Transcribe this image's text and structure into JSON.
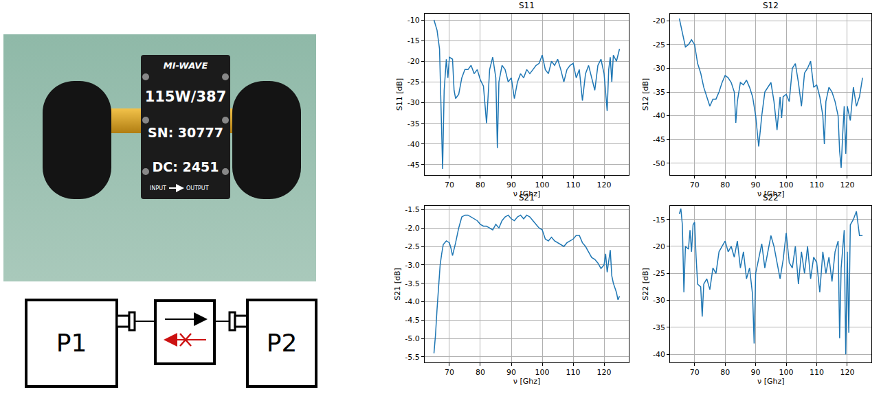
{
  "chart_data": [
    {
      "type": "line",
      "title": "S11",
      "x_label": "ν [Ghz]",
      "y_label": "S11 [dB]",
      "color": "#1f77b4",
      "grid": true,
      "xlim": [
        62,
        128
      ],
      "xticks": [
        70,
        80,
        90,
        100,
        110,
        120
      ],
      "ylim": [
        -47.5,
        -8.5
      ],
      "yticks": [
        -45,
        -40,
        -35,
        -30,
        -25,
        -20,
        -15,
        -10
      ],
      "x": [
        65,
        66,
        66.8,
        67.3,
        67.8,
        68.3,
        69,
        69.5,
        70,
        71,
        71.5,
        72,
        73,
        74,
        75,
        76,
        77,
        78,
        79,
        80,
        81,
        82,
        83,
        84,
        85,
        85.5,
        86,
        87,
        88,
        89,
        90,
        91,
        92,
        93,
        94,
        95,
        96,
        97,
        98,
        99,
        100,
        101,
        102,
        103,
        104,
        105,
        106,
        107,
        108,
        109,
        110,
        111,
        112,
        113,
        114,
        115,
        116,
        117,
        118,
        119,
        120,
        121,
        121.5,
        122,
        122.5,
        123,
        124,
        125
      ],
      "values": [
        -10,
        -12.5,
        -17,
        -33,
        -46,
        -27,
        -19.5,
        -24,
        -19,
        -19.5,
        -27,
        -29,
        -28,
        -24,
        -22,
        -22,
        -21,
        -23,
        -22,
        -24.5,
        -26,
        -35,
        -22,
        -19,
        -24,
        -41,
        -25,
        -21,
        -22,
        -25,
        -24,
        -29,
        -25,
        -23,
        -24,
        -22,
        -23,
        -22,
        -21,
        -20.5,
        -18.5,
        -22,
        -23,
        -20,
        -21,
        -19.5,
        -22,
        -25,
        -22,
        -21,
        -20.5,
        -24,
        -22,
        -29.5,
        -23,
        -21,
        -24,
        -27,
        -21,
        -19.5,
        -23,
        -32,
        -22,
        -19,
        -25,
        -18.5,
        -20,
        -17
      ]
    },
    {
      "type": "line",
      "title": "S12",
      "x_label": "ν [Ghz]",
      "y_label": "S12 [dB]",
      "color": "#1f77b4",
      "grid": true,
      "xlim": [
        62,
        128
      ],
      "xticks": [
        70,
        80,
        90,
        100,
        110,
        120
      ],
      "ylim": [
        -52.5,
        -18.5
      ],
      "yticks": [
        -50,
        -45,
        -40,
        -35,
        -30,
        -25,
        -20
      ],
      "x": [
        65,
        66,
        67,
        68,
        69,
        70,
        71,
        72,
        73,
        74,
        75,
        76,
        77,
        78,
        79,
        80,
        81,
        82,
        83,
        83.5,
        84,
        85,
        86,
        87,
        88,
        89,
        90,
        91,
        92,
        93,
        94,
        95,
        96,
        97,
        98,
        98.5,
        99,
        100,
        101,
        102,
        103,
        104,
        105,
        106,
        107,
        108,
        109,
        110,
        111,
        112,
        112.5,
        113,
        114,
        115,
        116,
        117,
        117.5,
        118,
        118.5,
        119,
        119.5,
        120,
        121,
        122,
        123,
        124,
        125
      ],
      "values": [
        -19.5,
        -22.5,
        -25.5,
        -25,
        -24,
        -25,
        -29,
        -31,
        -34,
        -36,
        -38,
        -36.5,
        -36.5,
        -35,
        -33,
        -31.5,
        -32,
        -33,
        -35,
        -41.5,
        -37,
        -33,
        -33.5,
        -32.5,
        -34,
        -36,
        -40,
        -46.5,
        -40,
        -35,
        -34,
        -33,
        -37,
        -43,
        -36,
        -40.5,
        -36,
        -35.5,
        -37,
        -30,
        -29,
        -33,
        -38,
        -31,
        -30,
        -28.5,
        -34,
        -33.5,
        -36,
        -40,
        -46,
        -37,
        -34,
        -35,
        -37,
        -40,
        -47.5,
        -51,
        -44,
        -38,
        -48,
        -38,
        -41,
        -34,
        -38,
        -36,
        -32
      ]
    },
    {
      "type": "line",
      "title": "S21",
      "x_label": "ν [Ghz]",
      "y_label": "S21 [dB]",
      "color": "#1f77b4",
      "grid": true,
      "xlim": [
        62,
        128
      ],
      "xticks": [
        70,
        80,
        90,
        100,
        110,
        120
      ],
      "ylim": [
        -5.65,
        -1.4
      ],
      "yticks": [
        -5.5,
        {
          "value": -5,
          "label": "-5.0"
        },
        -4.5,
        {
          "value": -4,
          "label": "-4.0"
        },
        -3.5,
        {
          "value": -3,
          "label": "-3.0"
        },
        -2.5,
        {
          "value": -2,
          "label": "-2.0"
        },
        -1.5
      ],
      "x": [
        65,
        65.5,
        66,
        66.5,
        67,
        67.5,
        68,
        69,
        70,
        70.5,
        71,
        72,
        73,
        74,
        75,
        76,
        77,
        78,
        79,
        80,
        81,
        82,
        83,
        84,
        85,
        86,
        87,
        88,
        89,
        90,
        91,
        92,
        93,
        94,
        95,
        96,
        97,
        98,
        99,
        100,
        101,
        102,
        103,
        104,
        105,
        106,
        107,
        108,
        109,
        110,
        111,
        112,
        113,
        114,
        115,
        116,
        117,
        118,
        119,
        120,
        120.5,
        121,
        122,
        122.5,
        123,
        124,
        124.5,
        125
      ],
      "values": [
        -5.4,
        -4.9,
        -4.2,
        -3.5,
        -3.0,
        -2.7,
        -2.45,
        -2.35,
        -2.4,
        -2.55,
        -2.75,
        -2.4,
        -2.0,
        -1.7,
        -1.65,
        -1.65,
        -1.7,
        -1.75,
        -1.8,
        -1.9,
        -1.95,
        -1.95,
        -2.0,
        -2.05,
        -1.9,
        -2.0,
        -1.8,
        -1.7,
        -1.65,
        -1.75,
        -1.8,
        -1.7,
        -1.65,
        -1.75,
        -1.65,
        -1.7,
        -1.8,
        -1.9,
        -2.0,
        -2.05,
        -2.3,
        -2.35,
        -2.25,
        -2.35,
        -2.4,
        -2.45,
        -2.5,
        -2.4,
        -2.35,
        -2.3,
        -2.2,
        -2.2,
        -2.4,
        -2.5,
        -2.65,
        -2.8,
        -2.85,
        -2.95,
        -3.1,
        -3.0,
        -2.7,
        -3.2,
        -2.6,
        -3.3,
        -3.5,
        -3.75,
        -3.95,
        -3.85
      ]
    },
    {
      "type": "line",
      "title": "S22",
      "x_label": "ν [Ghz]",
      "y_label": "S22 [dB]",
      "color": "#1f77b4",
      "grid": true,
      "xlim": [
        62,
        128
      ],
      "xticks": [
        70,
        80,
        90,
        100,
        110,
        120
      ],
      "ylim": [
        -41.5,
        -12.5
      ],
      "yticks": [
        -40,
        -35,
        -30,
        -25,
        -20,
        -15
      ],
      "x": [
        65,
        65.5,
        66,
        66.5,
        67,
        68,
        68.5,
        69,
        69.5,
        70,
        70.5,
        71,
        72,
        72.5,
        73,
        74,
        75,
        76,
        77,
        78,
        79,
        80,
        81,
        82,
        83,
        84,
        85,
        86,
        87,
        88,
        89,
        89.5,
        90,
        91,
        92,
        93,
        94,
        95,
        96,
        97,
        98,
        99,
        100,
        101,
        102,
        103,
        104,
        105,
        106,
        107,
        108,
        109,
        110,
        111,
        112,
        113,
        114,
        115,
        116,
        117,
        117.5,
        118,
        119,
        119.5,
        120,
        120.5,
        121,
        122,
        123,
        124,
        125
      ],
      "values": [
        -14,
        -13,
        -16,
        -28.5,
        -20,
        -20.5,
        -17,
        -21,
        -16,
        -15.5,
        -22,
        -27,
        -27.5,
        -33,
        -27,
        -26,
        -28,
        -24,
        -25,
        -21,
        -20,
        -19,
        -21,
        -20,
        -22,
        -19,
        -24,
        -21,
        -26,
        -24,
        -29,
        -38,
        -25,
        -22,
        -19.5,
        -24,
        -21,
        -18,
        -20,
        -23,
        -26,
        -22.5,
        -17.5,
        -23,
        -24,
        -20,
        -27,
        -21,
        -25,
        -20,
        -26,
        -22,
        -23,
        -28.5,
        -21,
        -25,
        -22,
        -26.5,
        -21,
        -19,
        -37,
        -24,
        -17,
        -40,
        -21,
        -36,
        -16,
        -15,
        -13.5,
        -18,
        -18
      ]
    }
  ],
  "photo": {
    "brand": "MI-WAVE",
    "lines": [
      "115W/387",
      "SN: 30777",
      "DC: 2451"
    ],
    "input": "INPUT",
    "output": "OUTPUT"
  },
  "diagram": {
    "nodes": [
      {
        "label": "P1"
      },
      {
        "label": "P2"
      }
    ]
  }
}
